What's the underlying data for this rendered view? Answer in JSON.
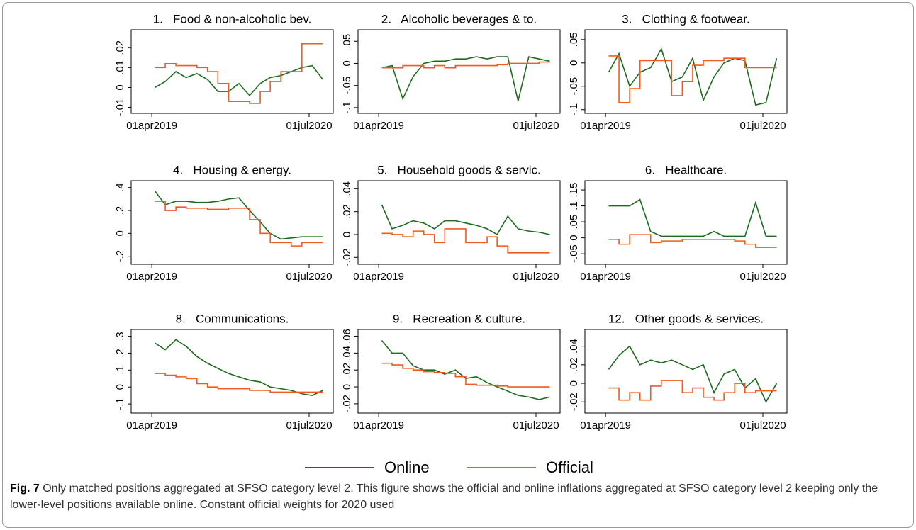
{
  "chart_data": {
    "type": "line",
    "xlim": [
      "2019-01-31",
      "2020-09-09"
    ],
    "xticks": [
      {
        "value": "2019-04-01",
        "label": "01apr2019"
      },
      {
        "value": "2020-07-01",
        "label": "01jul2020"
      }
    ],
    "x": [
      "2019-04-10",
      "2019-05-10",
      "2019-06-10",
      "2019-07-10",
      "2019-08-10",
      "2019-09-10",
      "2019-10-10",
      "2019-11-10",
      "2019-12-10",
      "2020-01-10",
      "2020-02-10",
      "2020-03-10",
      "2020-04-10",
      "2020-05-10",
      "2020-06-10",
      "2020-07-10",
      "2020-08-10"
    ],
    "series": [
      {
        "name": "Online",
        "color": "#1d6b1d",
        "drawstyle": "line"
      },
      {
        "name": "Official",
        "color": "#f05a1e",
        "drawstyle": "steps-post"
      }
    ],
    "panels": [
      {
        "title": "1.   Food & non-alcoholic bev.",
        "ylim": [
          -0.013,
          0.029
        ],
        "yticks": [
          {
            "value": -0.01,
            "label": "-.01"
          },
          0,
          {
            "value": 0.01,
            "label": ".01"
          },
          {
            "value": 0.02,
            "label": ".02"
          }
        ],
        "values": [
          [
            0,
            0.003,
            0.008,
            0.005,
            0.007,
            0.004,
            -0.002,
            -0.002,
            0.002,
            -0.004,
            0.002,
            0.005,
            0.006,
            0.008,
            0.01,
            0.011,
            0.004
          ],
          [
            0.01,
            0.012,
            0.011,
            0.011,
            0.01,
            0.008,
            0.002,
            -0.007,
            -0.007,
            -0.008,
            -0.002,
            0.003,
            0.008,
            0.008,
            0.022,
            0.022,
            0.022
          ]
        ]
      },
      {
        "title": "2.   Alcoholic beverages & to.",
        "ylim": [
          -0.113,
          0.076
        ],
        "yticks": [
          {
            "value": -0.1,
            "label": "-.1"
          },
          {
            "value": -0.05,
            "label": "-.05"
          },
          0,
          {
            "value": 0.05,
            "label": ".05"
          }
        ],
        "values": [
          [
            -0.01,
            -0.005,
            -0.08,
            -0.03,
            0,
            0.005,
            0.005,
            0.01,
            0.01,
            0.015,
            0.01,
            0.015,
            0.015,
            -0.085,
            0.015,
            0.01,
            0.005
          ],
          [
            -0.01,
            -0.01,
            -0.005,
            -0.005,
            -0.01,
            -0.005,
            -0.01,
            -0.005,
            -0.005,
            -0.005,
            -0.005,
            -0.003,
            0,
            0,
            0,
            0.003,
            0.003
          ]
        ]
      },
      {
        "title": "3.   Clothing & footwear.",
        "ylim": [
          -0.108,
          0.071
        ],
        "yticks": [
          {
            "value": -0.1,
            "label": "-.1"
          },
          {
            "value": -0.05,
            "label": "-.05"
          },
          0,
          {
            "value": 0.05,
            "label": ".05"
          }
        ],
        "values": [
          [
            -0.02,
            0.02,
            -0.05,
            -0.02,
            -0.01,
            0.03,
            -0.04,
            -0.03,
            0.01,
            -0.08,
            -0.03,
            0,
            0.01,
            0.005,
            -0.09,
            -0.085,
            0.01
          ],
          [
            0.015,
            -0.085,
            -0.055,
            0.005,
            0.005,
            0.005,
            -0.07,
            -0.04,
            -0.005,
            0.005,
            0.005,
            0.01,
            0.01,
            -0.01,
            -0.01,
            -0.01,
            -0.01
          ]
        ]
      },
      {
        "title": "4.   Housing & energy.",
        "ylim": [
          -0.27,
          0.46
        ],
        "yticks": [
          {
            "value": -0.2,
            "label": "-.2"
          },
          0,
          {
            "value": 0.2,
            "label": ".2"
          },
          {
            "value": 0.4,
            "label": ".4"
          }
        ],
        "values": [
          [
            0.37,
            0.25,
            0.28,
            0.28,
            0.27,
            0.27,
            0.28,
            0.3,
            0.31,
            0.2,
            0.1,
            0,
            -0.05,
            -0.04,
            -0.03,
            -0.03,
            -0.03
          ],
          [
            0.28,
            0.2,
            0.23,
            0.22,
            0.22,
            0.21,
            0.21,
            0.22,
            0.22,
            0.12,
            0,
            -0.08,
            -0.08,
            -0.11,
            -0.08,
            -0.08,
            -0.08
          ]
        ]
      },
      {
        "title": "5.   Household goods & servic.",
        "ylim": [
          -0.026,
          0.047
        ],
        "yticks": [
          {
            "value": -0.02,
            "label": "-.02"
          },
          0,
          {
            "value": 0.02,
            "label": ".02"
          },
          {
            "value": 0.04,
            "label": ".04"
          }
        ],
        "values": [
          [
            0.026,
            0.005,
            0.008,
            0.012,
            0.01,
            0.005,
            0.012,
            0.012,
            0.01,
            0.008,
            0.005,
            0,
            0.016,
            0.005,
            0.003,
            0.002,
            0
          ],
          [
            0.001,
            0,
            -0.002,
            0.003,
            0,
            -0.007,
            0.005,
            0.005,
            -0.007,
            -0.007,
            -0.002,
            -0.01,
            -0.016,
            -0.016,
            -0.016,
            -0.016,
            -0.016
          ]
        ]
      },
      {
        "title": "6.   Healthcare.",
        "ylim": [
          -0.083,
          0.179
        ],
        "yticks": [
          {
            "value": -0.05,
            "label": "-.05"
          },
          0,
          {
            "value": 0.05,
            "label": ".05"
          },
          {
            "value": 0.1,
            "label": ".1"
          },
          {
            "value": 0.15,
            "label": ".15"
          }
        ],
        "values": [
          [
            0.1,
            0.1,
            0.1,
            0.12,
            0.02,
            0.005,
            0.005,
            0.005,
            0.005,
            0.005,
            0.02,
            0.005,
            0.005,
            0.005,
            0.11,
            0.005,
            0.005
          ],
          [
            -0.005,
            -0.02,
            0.01,
            0.01,
            -0.015,
            -0.01,
            -0.01,
            -0.005,
            -0.005,
            -0.005,
            -0.005,
            -0.005,
            -0.01,
            -0.02,
            -0.03,
            -0.03,
            -0.03
          ]
        ]
      },
      {
        "title": "8.   Communications.",
        "ylim": [
          -0.154,
          0.34
        ],
        "yticks": [
          {
            "value": -0.1,
            "label": "-.1"
          },
          0,
          {
            "value": 0.1,
            "label": ".1"
          },
          {
            "value": 0.2,
            "label": ".2"
          },
          {
            "value": 0.3,
            "label": ".3"
          }
        ],
        "values": [
          [
            0.26,
            0.22,
            0.28,
            0.24,
            0.18,
            0.14,
            0.11,
            0.08,
            0.06,
            0.04,
            0.03,
            0,
            -0.01,
            -0.02,
            -0.04,
            -0.05,
            -0.02
          ],
          [
            0.08,
            0.07,
            0.06,
            0.05,
            0.02,
            0,
            -0.01,
            -0.01,
            -0.01,
            -0.02,
            -0.02,
            -0.03,
            -0.03,
            -0.03,
            -0.03,
            -0.03,
            -0.03
          ]
        ]
      },
      {
        "title": "9.   Recreation & culture.",
        "ylim": [
          -0.031,
          0.068
        ],
        "yticks": [
          {
            "value": -0.02,
            "label": "-.02"
          },
          0,
          {
            "value": 0.02,
            "label": ".02"
          },
          {
            "value": 0.04,
            "label": ".04"
          },
          {
            "value": 0.06,
            "label": ".06"
          }
        ],
        "values": [
          [
            0.055,
            0.04,
            0.04,
            0.025,
            0.02,
            0.02,
            0.015,
            0.02,
            0.01,
            0.012,
            0.005,
            0,
            -0.005,
            -0.01,
            -0.012,
            -0.015,
            -0.012
          ],
          [
            0.028,
            0.026,
            0.022,
            0.02,
            0.018,
            0.017,
            0.016,
            0.012,
            0.003,
            0.002,
            0.002,
            0.001,
            0,
            0,
            0,
            0,
            0
          ]
        ]
      },
      {
        "title": "12.   Other goods & services.",
        "ylim": [
          -0.032,
          0.058
        ],
        "yticks": [
          {
            "value": -0.02,
            "label": "-.02"
          },
          0,
          {
            "value": 0.02,
            "label": ".02"
          },
          {
            "value": 0.04,
            "label": ".04"
          }
        ],
        "values": [
          [
            0.015,
            0.03,
            0.04,
            0.02,
            0.025,
            0.022,
            0.025,
            0.02,
            0.015,
            0.02,
            -0.01,
            0.01,
            0.015,
            -0.005,
            0.005,
            -0.02,
            0
          ],
          [
            -0.005,
            -0.018,
            -0.01,
            -0.018,
            -0.003,
            0.003,
            0.003,
            -0.01,
            -0.005,
            -0.015,
            -0.018,
            -0.01,
            0,
            -0.01,
            -0.008,
            -0.008,
            -0.008
          ]
        ]
      }
    ]
  },
  "caption": {
    "label": "Fig. 7",
    "text": "Only matched positions aggregated at SFSO category level 2. This figure shows the official and online inflations aggregated at SFSO category level 2 keeping only the lower-level positions available online. Constant official weights for 2020 used"
  }
}
